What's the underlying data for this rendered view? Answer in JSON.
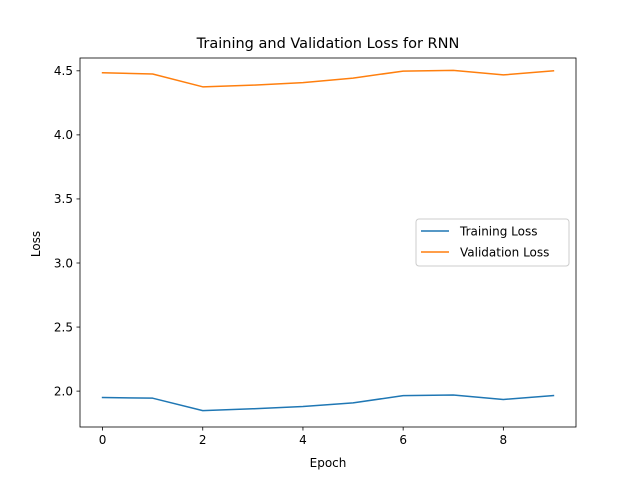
{
  "chart_data": {
    "type": "line",
    "title": "Training and Validation Loss for RNN",
    "xlabel": "Epoch",
    "ylabel": "Loss",
    "x": [
      0,
      1,
      2,
      3,
      4,
      5,
      6,
      7,
      8,
      9
    ],
    "xlim": [
      -0.45,
      9.45
    ],
    "ylim": [
      1.72,
      4.6
    ],
    "xticks": [
      0,
      2,
      4,
      6,
      8
    ],
    "xtick_labels": [
      "0",
      "2",
      "4",
      "6",
      "8"
    ],
    "yticks": [
      2.0,
      2.5,
      3.0,
      3.5,
      4.0,
      4.5
    ],
    "ytick_labels": [
      "2.0",
      "2.5",
      "3.0",
      "3.5",
      "4.0",
      "4.5"
    ],
    "grid": false,
    "legend_position": "center-right",
    "series": [
      {
        "name": "Training Loss",
        "color": "#1f77b4",
        "values": [
          1.95,
          1.945,
          1.848,
          1.862,
          1.88,
          1.908,
          1.965,
          1.97,
          1.935,
          1.965
        ]
      },
      {
        "name": "Validation Loss",
        "color": "#ff7f0e",
        "values": [
          4.485,
          4.475,
          4.375,
          4.388,
          4.408,
          4.443,
          4.498,
          4.503,
          4.468,
          4.5
        ]
      }
    ]
  }
}
